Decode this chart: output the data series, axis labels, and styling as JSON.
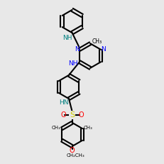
{
  "smiles": "CCOc1c(C)cc(S(=O)(=O)Nc2ccc(Nc3nc(Nc4ccccc4)cc(C)n3)cc2)cc1C",
  "bg_color": "#e8e8e8",
  "bond_color": "#000000",
  "N_color": "#0000ff",
  "O_color": "#ff0000",
  "S_color": "#cccc00",
  "NH_color": "#008080",
  "lw": 1.5,
  "dlw": 0.8
}
